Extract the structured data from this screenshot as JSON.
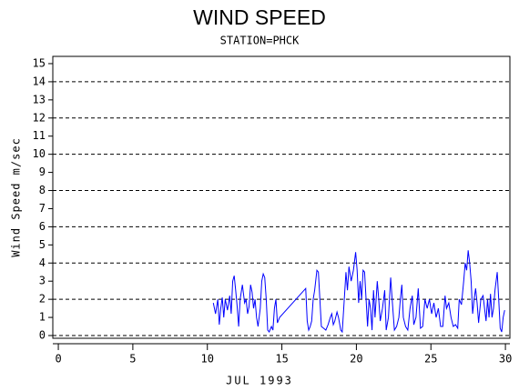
{
  "chart_data": {
    "type": "line",
    "title": "WIND SPEED",
    "subtitle": "STATION=PHCK",
    "x_label": "JUL 1993",
    "y_label": "Wind Speed m/sec",
    "xlim": [
      -0.37,
      30.3
    ],
    "ylim": [
      -0.15,
      15.4
    ],
    "xticks": [
      0,
      5,
      10,
      15,
      20,
      25,
      30
    ],
    "yticks": [
      0,
      1,
      2,
      3,
      4,
      5,
      6,
      7,
      8,
      9,
      10,
      11,
      12,
      13,
      14,
      15
    ],
    "ygrid": [
      0,
      2,
      4,
      6,
      8,
      10,
      12,
      14
    ],
    "series": [
      {
        "color": "#0000ff",
        "x": [
          10.4,
          10.55,
          10.7,
          10.8,
          10.9,
          11.0,
          11.1,
          11.2,
          11.35,
          11.5,
          11.6,
          11.7,
          11.8,
          11.9,
          12.0,
          12.1,
          12.2,
          12.35,
          12.5,
          12.6,
          12.7,
          12.8,
          12.9,
          13.0,
          13.1,
          13.2,
          13.3,
          13.4,
          13.55,
          13.65,
          13.75,
          13.85,
          13.95,
          14.05,
          14.15,
          14.3,
          14.4,
          14.5,
          14.6,
          14.7,
          14.85,
          16.6,
          16.7,
          16.8,
          16.9,
          17.0,
          17.1,
          17.2,
          17.35,
          17.45,
          17.55,
          17.65,
          17.8,
          17.95,
          18.1,
          18.25,
          18.35,
          18.45,
          18.55,
          18.7,
          18.8,
          18.95,
          19.05,
          19.15,
          19.3,
          19.4,
          19.5,
          19.65,
          19.8,
          19.95,
          20.05,
          20.15,
          20.25,
          20.35,
          20.45,
          20.55,
          20.65,
          20.75,
          20.85,
          20.95,
          21.05,
          21.15,
          21.25,
          21.4,
          21.5,
          21.6,
          21.75,
          21.9,
          22.0,
          22.15,
          22.3,
          22.4,
          22.55,
          22.7,
          22.85,
          22.95,
          23.05,
          23.15,
          23.3,
          23.45,
          23.6,
          23.75,
          23.85,
          24.0,
          24.15,
          24.3,
          24.45,
          24.6,
          24.75,
          24.9,
          25.05,
          25.2,
          25.35,
          25.5,
          25.65,
          25.8,
          25.95,
          26.05,
          26.2,
          26.35,
          26.5,
          26.65,
          26.8,
          26.9,
          27.05,
          27.2,
          27.3,
          27.4,
          27.5,
          27.6,
          27.7,
          27.8,
          27.9,
          28.0,
          28.1,
          28.2,
          28.35,
          28.5,
          28.6,
          28.7,
          28.8,
          28.9,
          29.0,
          29.1,
          29.2,
          29.3,
          29.45,
          29.55,
          29.65,
          29.75,
          29.85,
          29.95
        ],
        "values": [
          1.8,
          1.2,
          2.0,
          0.6,
          1.5,
          2.1,
          1.0,
          2.0,
          1.4,
          2.2,
          1.2,
          3.0,
          3.3,
          2.5,
          1.6,
          0.5,
          2.0,
          2.8,
          1.8,
          2.0,
          1.2,
          1.6,
          2.8,
          2.4,
          1.5,
          2.0,
          1.0,
          0.5,
          1.5,
          3.0,
          3.4,
          3.2,
          2.0,
          0.3,
          0.2,
          0.5,
          0.3,
          1.5,
          2.0,
          0.7,
          1.0,
          2.6,
          0.8,
          0.3,
          0.5,
          0.8,
          2.0,
          2.5,
          3.6,
          3.5,
          2.0,
          0.5,
          0.4,
          0.3,
          0.6,
          1.0,
          1.2,
          0.6,
          0.8,
          1.3,
          1.0,
          0.3,
          0.2,
          1.5,
          3.5,
          2.5,
          3.8,
          3.0,
          3.6,
          4.6,
          3.6,
          1.8,
          3.0,
          2.0,
          3.6,
          3.5,
          2.0,
          0.5,
          2.0,
          1.5,
          0.3,
          2.5,
          1.0,
          3.0,
          2.0,
          0.8,
          1.5,
          2.5,
          0.3,
          1.0,
          3.2,
          2.0,
          0.3,
          0.5,
          1.0,
          2.0,
          2.8,
          1.0,
          0.5,
          0.3,
          1.5,
          2.2,
          0.6,
          1.0,
          2.6,
          0.4,
          0.5,
          2.0,
          1.5,
          2.0,
          1.2,
          1.8,
          1.0,
          1.5,
          0.5,
          0.5,
          2.2,
          1.5,
          1.8,
          1.0,
          0.5,
          0.6,
          0.4,
          2.0,
          1.7,
          3.0,
          4.0,
          3.6,
          4.7,
          4.0,
          3.0,
          1.2,
          2.0,
          2.6,
          1.8,
          0.7,
          2.0,
          2.2,
          1.5,
          0.8,
          2.0,
          1.0,
          2.3,
          1.0,
          1.5,
          2.5,
          3.5,
          2.0,
          0.4,
          0.2,
          1.0,
          1.4
        ]
      }
    ]
  }
}
